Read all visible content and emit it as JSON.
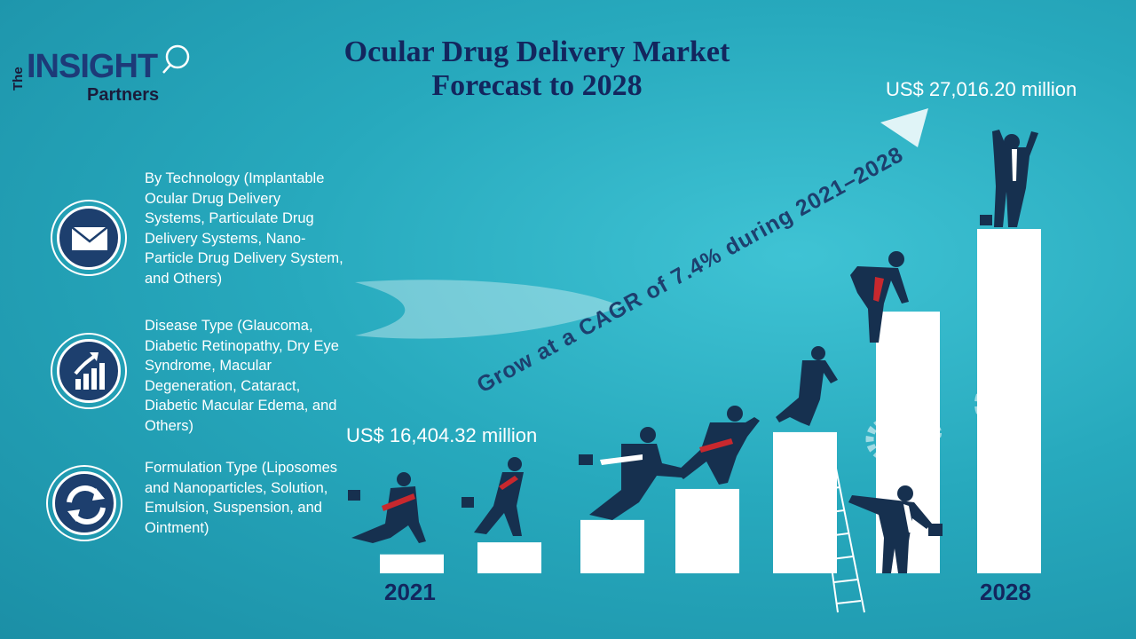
{
  "logo": {
    "the": "The",
    "insight": "INSIGHT",
    "partners": "Partners"
  },
  "title": {
    "line1": "Ocular Drug Delivery Market",
    "line2": "Forecast to 2028"
  },
  "segments": [
    {
      "icon": "envelope-icon",
      "text": "By Technology (Implantable Ocular Drug Delivery Systems, Particulate Drug Delivery Systems, Nano-Particle Drug Delivery System, and Others)"
    },
    {
      "icon": "growth-chart-icon",
      "text": "Disease Type (Glaucoma, Diabetic Retinopathy, Dry Eye Syndrome, Macular Degeneration, Cataract, Diabetic Macular Edema, and Others)"
    },
    {
      "icon": "refresh-icon",
      "text": "Formulation Type (Liposomes and Nanoparticles, Solution, Emulsion, Suspension, and Ointment)"
    }
  ],
  "colors": {
    "title": "#13265e",
    "icon_bg": "#1d3f6e",
    "bar": "#ffffff",
    "background": "#27a9bd"
  },
  "chart_data": {
    "type": "bar",
    "start_year": "2021",
    "end_year": "2028",
    "start_value_label": "US$ 16,404.32 million",
    "end_value_label": "US$ 27,016.20 million",
    "cagr_text": "Grow at a CAGR of 7.4% during 2021–2028",
    "values": [
      16404.32,
      27016.2
    ],
    "bar_fractions": [
      0.055,
      0.09,
      0.155,
      0.245,
      0.41,
      0.76,
      1.0
    ]
  }
}
